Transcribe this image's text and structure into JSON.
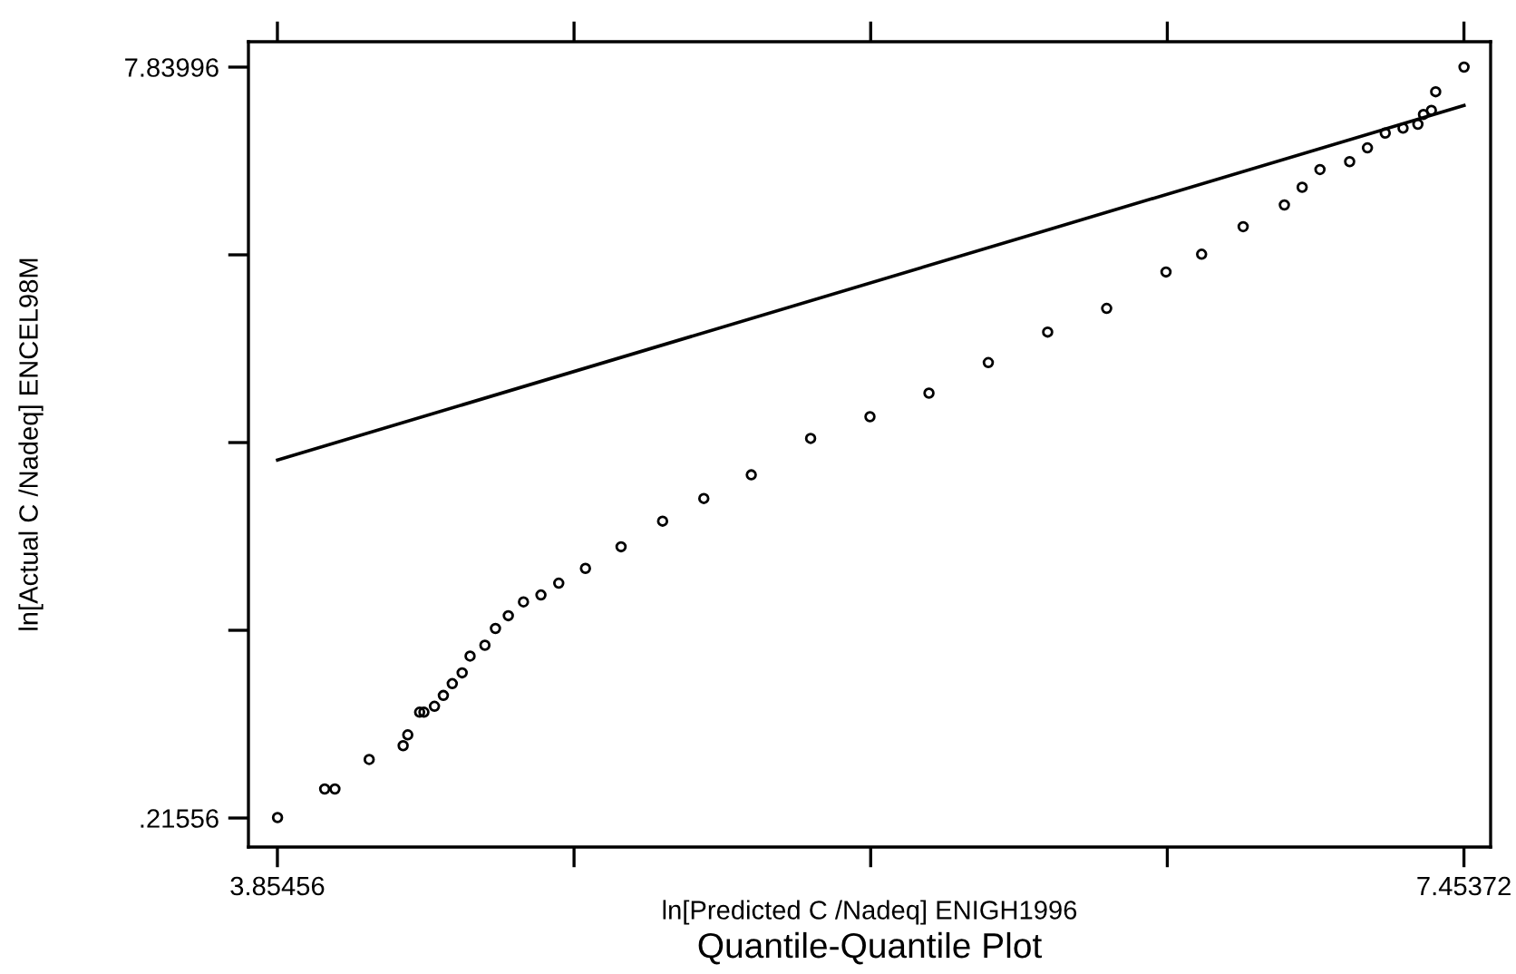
{
  "chart_data": {
    "type": "scatter",
    "title": "Quantile-Quantile Plot",
    "xlabel": "ln[Predicted C /Nadeq] ENIGH1996",
    "ylabel": "ln[Actual C /Nadeq] ENCEL98M",
    "xlim": [
      3.7667,
      7.5346
    ],
    "ylim": [
      -0.079,
      8.0978
    ],
    "xticks": [
      3.85456,
      {
        "value": 4.75435,
        "label": null
      },
      {
        "value": 5.65414,
        "label": null
      },
      {
        "value": 6.55393,
        "label": null
      },
      7.45372
    ],
    "yticks": [
      {
        "value": 0.21556,
        "label": ".21556"
      },
      {
        "value": 2.12166,
        "label": null
      },
      {
        "value": 4.02776,
        "label": null
      },
      {
        "value": 5.93386,
        "label": null
      },
      7.83996
    ],
    "grid": false,
    "legend": false,
    "marker": "circle",
    "series": [
      {
        "color": "#000000",
        "x": [
          3.855,
          3.998,
          4.029,
          4.133,
          4.236,
          4.25,
          4.286,
          4.299,
          4.331,
          4.358,
          4.385,
          4.415,
          4.439,
          4.484,
          4.516,
          4.555,
          4.601,
          4.654,
          4.708,
          4.789,
          4.897,
          5.023,
          5.148,
          5.292,
          5.472,
          5.652,
          5.831,
          6.011,
          6.191,
          6.37,
          6.55,
          6.658,
          6.784,
          6.909,
          6.963,
          7.017,
          7.107,
          7.161,
          7.215,
          7.269,
          7.314,
          7.331,
          7.355,
          7.368,
          7.454
        ],
        "values": [
          0.22,
          0.51,
          0.51,
          0.81,
          0.95,
          1.06,
          1.29,
          1.29,
          1.35,
          1.46,
          1.58,
          1.69,
          1.86,
          1.97,
          2.14,
          2.27,
          2.41,
          2.48,
          2.6,
          2.75,
          2.97,
          3.23,
          3.46,
          3.7,
          4.07,
          4.29,
          4.53,
          4.84,
          5.15,
          5.39,
          5.76,
          5.94,
          6.22,
          6.44,
          6.62,
          6.8,
          6.88,
          7.02,
          7.17,
          7.22,
          7.26,
          7.36,
          7.4,
          7.59,
          7.84
        ]
      },
      {
        "type": "line",
        "color": "#000000",
        "marker": "none",
        "line_style": "solid",
        "x": [
          3.855,
          7.454
        ],
        "values": [
          3.85,
          7.45
        ]
      }
    ]
  }
}
